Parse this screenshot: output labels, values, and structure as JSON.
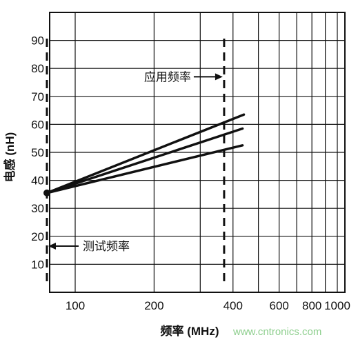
{
  "chart_data": {
    "type": "line",
    "xlabel": "频率 (MHz)",
    "ylabel": "电感 (nH)",
    "x_scale": "log",
    "xlim": [
      70,
      1000
    ],
    "ylim": [
      0,
      100
    ],
    "x_ticks": [
      {
        "value": 100,
        "label": "100"
      },
      {
        "value": 200,
        "label": "200"
      },
      {
        "value": 300,
        "label": ""
      },
      {
        "value": 400,
        "label": "400"
      },
      {
        "value": 500,
        "label": ""
      },
      {
        "value": 600,
        "label": "600"
      },
      {
        "value": 700,
        "label": ""
      },
      {
        "value": 800,
        "label": "800"
      },
      {
        "value": 900,
        "label": ""
      },
      {
        "value": 1000,
        "label": "1000"
      }
    ],
    "y_ticks": [
      10,
      20,
      30,
      40,
      50,
      60,
      70,
      80,
      90
    ],
    "grid": true,
    "series": [
      {
        "x": [
          78,
          440
        ],
        "y": [
          35.5,
          63.5
        ]
      },
      {
        "x": [
          78,
          435
        ],
        "y": [
          35.5,
          58.5
        ]
      },
      {
        "x": [
          78,
          435
        ],
        "y": [
          35.5,
          52.5
        ]
      }
    ],
    "marker_point": {
      "x": 78,
      "y": 35.5
    },
    "vlines": [
      {
        "x": 78,
        "label": "测试频率",
        "label_y": 16.5
      },
      {
        "x": 370,
        "label": "应用频率",
        "label_y": 77
      }
    ],
    "watermark": "www.cntronics.com"
  }
}
